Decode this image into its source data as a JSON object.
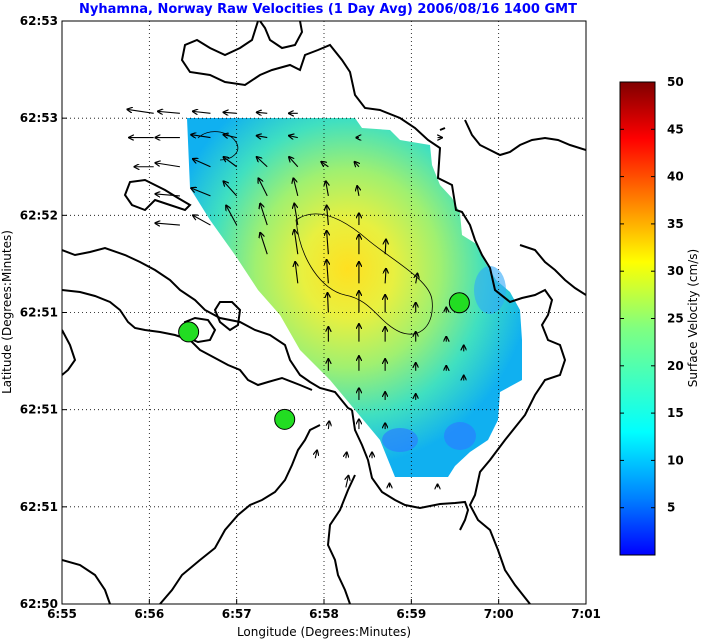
{
  "chart_data": {
    "type": "heatmap",
    "title": "Nyhamna, Norway Raw Velocities (1 Day Avg) 2006/08/16 1400 GMT",
    "xlabel": "Longitude (Degrees:Minutes)",
    "ylabel": "Latitude (Degrees:Minutes)",
    "x_ticks": [
      "6:55",
      "6:56",
      "6:57",
      "6:58",
      "6:59",
      "7:00",
      "7:01"
    ],
    "y_ticks": [
      "62:50",
      "62:51",
      "62:51",
      "62:51",
      "62:52",
      "62:53",
      "62:53"
    ],
    "xlim": [
      0,
      6
    ],
    "ylim": [
      0,
      6
    ],
    "grid": true,
    "colorbar": {
      "label": "Surface Velocity (cm/s)",
      "min": 0,
      "max": 50,
      "ticks": [
        "5",
        "10",
        "15",
        "20",
        "25",
        "30",
        "35",
        "40",
        "45",
        "50"
      ],
      "colormap": "jet"
    },
    "contours_cm_s": [
      20,
      25
    ],
    "stations": [
      {
        "x": 1.45,
        "y": 2.8
      },
      {
        "x": 2.55,
        "y": 1.9
      },
      {
        "x": 4.55,
        "y": 3.1
      }
    ],
    "vectors": [
      {
        "x": 1.05,
        "y": 5.05,
        "u": -0.3,
        "v": 0.04
      },
      {
        "x": 1.35,
        "y": 5.05,
        "u": -0.25,
        "v": 0.02
      },
      {
        "x": 1.7,
        "y": 5.05,
        "u": -0.2,
        "v": 0.02
      },
      {
        "x": 2.0,
        "y": 5.05,
        "u": -0.15,
        "v": 0.01
      },
      {
        "x": 2.35,
        "y": 5.05,
        "u": -0.12,
        "v": 0.01
      },
      {
        "x": 2.7,
        "y": 5.05,
        "u": -0.1,
        "v": 0.0
      },
      {
        "x": 1.05,
        "y": 4.8,
        "u": -0.28,
        "v": 0.0
      },
      {
        "x": 1.35,
        "y": 4.8,
        "u": -0.28,
        "v": 0.0
      },
      {
        "x": 1.7,
        "y": 4.8,
        "u": -0.22,
        "v": 0.03
      },
      {
        "x": 2.0,
        "y": 4.8,
        "u": -0.15,
        "v": 0.03
      },
      {
        "x": 2.35,
        "y": 4.8,
        "u": -0.12,
        "v": 0.02
      },
      {
        "x": 2.7,
        "y": 4.8,
        "u": -0.1,
        "v": 0.02
      },
      {
        "x": 1.05,
        "y": 4.5,
        "u": -0.22,
        "v": 0.0
      },
      {
        "x": 1.35,
        "y": 4.5,
        "u": -0.28,
        "v": 0.04
      },
      {
        "x": 1.7,
        "y": 4.5,
        "u": -0.2,
        "v": 0.08
      },
      {
        "x": 2.0,
        "y": 4.5,
        "u": -0.15,
        "v": 0.1
      },
      {
        "x": 2.35,
        "y": 4.5,
        "u": -0.12,
        "v": 0.1
      },
      {
        "x": 2.7,
        "y": 4.5,
        "u": -0.1,
        "v": 0.1
      },
      {
        "x": 3.05,
        "y": 4.5,
        "u": -0.08,
        "v": 0.05
      },
      {
        "x": 3.4,
        "y": 4.5,
        "u": -0.05,
        "v": 0.05
      },
      {
        "x": 1.35,
        "y": 4.2,
        "u": -0.28,
        "v": 0.02
      },
      {
        "x": 1.7,
        "y": 4.2,
        "u": -0.22,
        "v": 0.08
      },
      {
        "x": 2.0,
        "y": 4.2,
        "u": -0.15,
        "v": 0.15
      },
      {
        "x": 2.35,
        "y": 4.2,
        "u": -0.1,
        "v": 0.18
      },
      {
        "x": 2.7,
        "y": 4.2,
        "u": -0.05,
        "v": 0.18
      },
      {
        "x": 3.05,
        "y": 4.2,
        "u": -0.03,
        "v": 0.15
      },
      {
        "x": 3.4,
        "y": 4.2,
        "u": -0.02,
        "v": 0.1
      },
      {
        "x": 1.35,
        "y": 3.9,
        "u": -0.28,
        "v": 0.02
      },
      {
        "x": 1.7,
        "y": 3.9,
        "u": -0.2,
        "v": 0.1
      },
      {
        "x": 2.0,
        "y": 3.9,
        "u": -0.12,
        "v": 0.2
      },
      {
        "x": 2.35,
        "y": 3.9,
        "u": -0.08,
        "v": 0.22
      },
      {
        "x": 2.7,
        "y": 3.9,
        "u": -0.04,
        "v": 0.22
      },
      {
        "x": 3.05,
        "y": 3.9,
        "u": -0.02,
        "v": 0.2
      },
      {
        "x": 3.4,
        "y": 3.9,
        "u": 0.0,
        "v": 0.12
      },
      {
        "x": 2.35,
        "y": 3.6,
        "u": -0.08,
        "v": 0.22
      },
      {
        "x": 2.7,
        "y": 3.6,
        "u": -0.04,
        "v": 0.25
      },
      {
        "x": 3.05,
        "y": 3.6,
        "u": -0.02,
        "v": 0.24
      },
      {
        "x": 3.4,
        "y": 3.6,
        "u": 0.0,
        "v": 0.2
      },
      {
        "x": 3.7,
        "y": 3.6,
        "u": 0.01,
        "v": 0.15
      },
      {
        "x": 2.7,
        "y": 3.3,
        "u": -0.03,
        "v": 0.22
      },
      {
        "x": 3.05,
        "y": 3.3,
        "u": -0.02,
        "v": 0.24
      },
      {
        "x": 3.4,
        "y": 3.3,
        "u": 0.0,
        "v": 0.22
      },
      {
        "x": 3.7,
        "y": 3.3,
        "u": 0.01,
        "v": 0.15
      },
      {
        "x": 4.05,
        "y": 3.3,
        "u": 0.02,
        "v": 0.1
      },
      {
        "x": 3.05,
        "y": 3.0,
        "u": -0.01,
        "v": 0.2
      },
      {
        "x": 3.4,
        "y": 3.0,
        "u": 0.0,
        "v": 0.22
      },
      {
        "x": 3.7,
        "y": 3.0,
        "u": 0.0,
        "v": 0.18
      },
      {
        "x": 4.05,
        "y": 3.0,
        "u": 0.0,
        "v": 0.1
      },
      {
        "x": 4.4,
        "y": 3.0,
        "u": 0.0,
        "v": 0.05
      },
      {
        "x": 3.05,
        "y": 2.7,
        "u": 0.0,
        "v": 0.15
      },
      {
        "x": 3.4,
        "y": 2.7,
        "u": 0.0,
        "v": 0.18
      },
      {
        "x": 3.7,
        "y": 2.7,
        "u": 0.0,
        "v": 0.15
      },
      {
        "x": 4.05,
        "y": 2.7,
        "u": 0.0,
        "v": 0.1
      },
      {
        "x": 4.4,
        "y": 2.7,
        "u": 0.0,
        "v": 0.05
      },
      {
        "x": 3.05,
        "y": 2.4,
        "u": 0.0,
        "v": 0.12
      },
      {
        "x": 3.4,
        "y": 2.4,
        "u": 0.0,
        "v": 0.15
      },
      {
        "x": 3.7,
        "y": 2.4,
        "u": 0.0,
        "v": 0.12
      },
      {
        "x": 4.05,
        "y": 2.4,
        "u": 0.0,
        "v": 0.08
      },
      {
        "x": 4.4,
        "y": 2.4,
        "u": 0.0,
        "v": 0.05
      },
      {
        "x": 3.4,
        "y": 2.1,
        "u": 0.0,
        "v": 0.12
      },
      {
        "x": 3.7,
        "y": 2.1,
        "u": 0.0,
        "v": 0.08
      },
      {
        "x": 4.05,
        "y": 2.1,
        "u": 0.0,
        "v": 0.06
      },
      {
        "x": 3.05,
        "y": 1.8,
        "u": 0.01,
        "v": 0.08
      },
      {
        "x": 3.4,
        "y": 1.8,
        "u": 0.0,
        "v": 0.1
      },
      {
        "x": 3.7,
        "y": 1.8,
        "u": 0.0,
        "v": 0.06
      },
      {
        "x": 2.9,
        "y": 1.5,
        "u": 0.02,
        "v": 0.08
      },
      {
        "x": 3.25,
        "y": 1.5,
        "u": 0.01,
        "v": 0.06
      },
      {
        "x": 3.55,
        "y": 1.5,
        "u": 0.0,
        "v": 0.06
      },
      {
        "x": 3.25,
        "y": 1.2,
        "u": 0.03,
        "v": 0.12
      },
      {
        "x": 3.75,
        "y": 1.2,
        "u": 0.0,
        "v": 0.04
      },
      {
        "x": 4.3,
        "y": 1.2,
        "u": 0.0,
        "v": 0.03
      },
      {
        "x": 4.6,
        "y": 2.6,
        "u": 0.0,
        "v": 0.06
      },
      {
        "x": 4.6,
        "y": 2.3,
        "u": 0.0,
        "v": 0.05
      },
      {
        "x": 4.3,
        "y": 4.8,
        "u": 0.05,
        "v": 0.0
      },
      {
        "x": 3.4,
        "y": 4.8,
        "u": -0.03,
        "v": 0.0
      }
    ]
  }
}
